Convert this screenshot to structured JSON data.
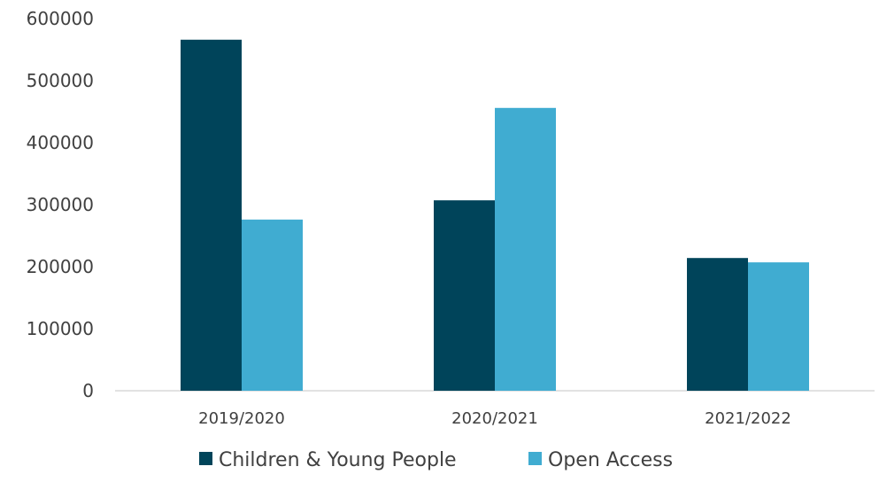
{
  "chart_data": {
    "type": "bar",
    "title": "",
    "xlabel": "",
    "ylabel": "",
    "categories": [
      "2019/2020",
      "2020/2021",
      "2021/2022"
    ],
    "series": [
      {
        "name": "Children & Young People",
        "values": [
          566000,
          307000,
          214000
        ],
        "color": "#00445A"
      },
      {
        "name": "Open Access",
        "values": [
          276000,
          456000,
          207000
        ],
        "color": "#40ACD1"
      }
    ],
    "ylim": [
      0,
      600000
    ],
    "yticks": [
      "0",
      "100000",
      "200000",
      "300000",
      "400000",
      "500000",
      "600000"
    ],
    "grid": false,
    "legend": "bottom-center"
  }
}
